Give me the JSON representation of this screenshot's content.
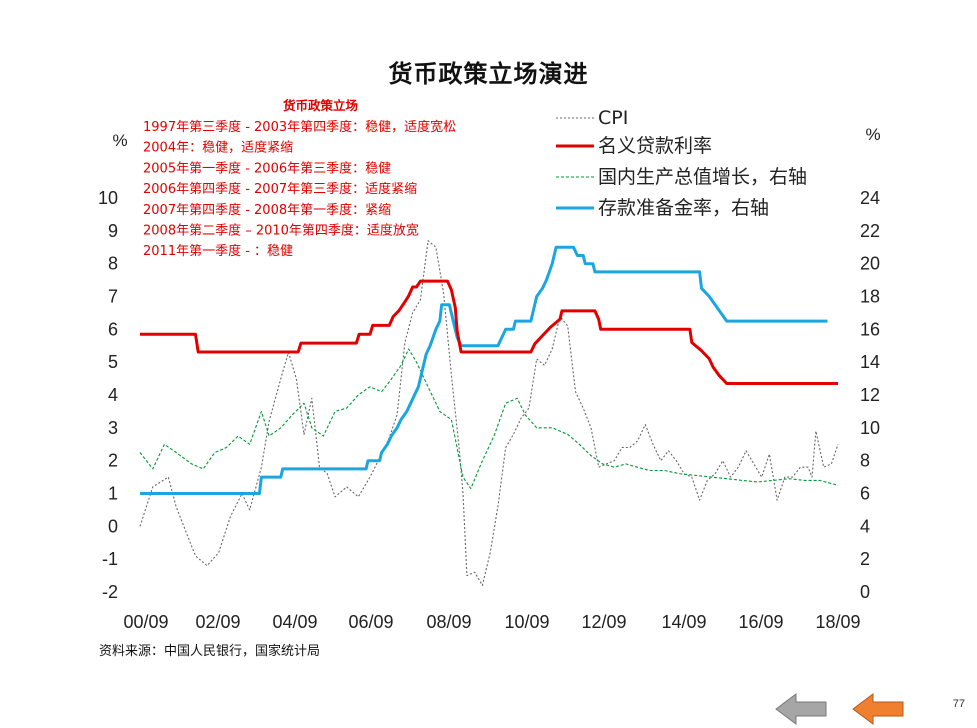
{
  "page": {
    "title": "货币政策立场演进",
    "source": "资料来源：中国人民银行，国家统计局",
    "page_number": "77"
  },
  "navigation": {
    "prev_color": "#a6a6a6",
    "next_color": "#f08030"
  },
  "chart_data": {
    "type": "line",
    "x_ticks": [
      "00/09",
      "02/09",
      "04/09",
      "06/09",
      "08/09",
      "10/09",
      "12/09",
      "14/09",
      "16/09",
      "18/09"
    ],
    "x_range": [
      2000.67,
      2018.67
    ],
    "left_axis": {
      "unit": "%",
      "range": [
        -2,
        10
      ],
      "ticks": [
        -2,
        -1,
        0,
        1,
        2,
        3,
        4,
        5,
        6,
        7,
        8,
        9,
        10
      ]
    },
    "right_axis": {
      "unit": "%",
      "range": [
        0,
        24
      ],
      "ticks": [
        0,
        2,
        4,
        6,
        8,
        10,
        12,
        14,
        16,
        18,
        20,
        22,
        24
      ]
    },
    "annotation": {
      "title": "货币政策立场",
      "lines": [
        "1997年第三季度 - 2003年第四季度：稳健，适度宽松",
        "2004年：稳健，适度紧缩",
        "2005年第一季度 - 2006年第三季度：稳健",
        "2006年第四季度 - 2007年第三季度：适度紧缩",
        "2007年第四季度 - 2008年第一季度：紧缩",
        "2008年第二季度 – 2010年第四季度：适度放宽",
        "2011年第一季度 - ：稳健"
      ]
    },
    "series": [
      {
        "name": "CPI",
        "axis": "left",
        "color": "#666666",
        "style": "dotted",
        "points": [
          [
            2000.67,
            0.0
          ],
          [
            2001.0,
            1.2
          ],
          [
            2001.4,
            1.5
          ],
          [
            2001.6,
            0.6
          ],
          [
            2001.9,
            -0.3
          ],
          [
            2002.1,
            -0.9
          ],
          [
            2002.4,
            -1.2
          ],
          [
            2002.7,
            -0.8
          ],
          [
            2003.0,
            0.3
          ],
          [
            2003.3,
            1.0
          ],
          [
            2003.5,
            0.5
          ],
          [
            2003.8,
            1.8
          ],
          [
            2004.0,
            3.2
          ],
          [
            2004.3,
            4.5
          ],
          [
            2004.5,
            5.3
          ],
          [
            2004.7,
            4.5
          ],
          [
            2004.9,
            2.8
          ],
          [
            2005.1,
            3.9
          ],
          [
            2005.3,
            1.8
          ],
          [
            2005.5,
            1.6
          ],
          [
            2005.7,
            0.9
          ],
          [
            2006.0,
            1.2
          ],
          [
            2006.3,
            0.9
          ],
          [
            2006.6,
            1.5
          ],
          [
            2006.9,
            2.2
          ],
          [
            2007.1,
            2.7
          ],
          [
            2007.3,
            3.4
          ],
          [
            2007.5,
            5.6
          ],
          [
            2007.7,
            6.5
          ],
          [
            2007.9,
            6.9
          ],
          [
            2008.1,
            8.7
          ],
          [
            2008.3,
            8.5
          ],
          [
            2008.5,
            7.1
          ],
          [
            2008.7,
            4.6
          ],
          [
            2008.9,
            2.4
          ],
          [
            2009.0,
            1.0
          ],
          [
            2009.1,
            -1.5
          ],
          [
            2009.3,
            -1.4
          ],
          [
            2009.5,
            -1.8
          ],
          [
            2009.7,
            -0.8
          ],
          [
            2009.9,
            0.6
          ],
          [
            2010.1,
            2.4
          ],
          [
            2010.3,
            2.8
          ],
          [
            2010.5,
            3.3
          ],
          [
            2010.7,
            3.6
          ],
          [
            2010.9,
            5.1
          ],
          [
            2011.1,
            4.9
          ],
          [
            2011.3,
            5.4
          ],
          [
            2011.5,
            6.4
          ],
          [
            2011.7,
            6.1
          ],
          [
            2011.9,
            4.1
          ],
          [
            2012.1,
            3.6
          ],
          [
            2012.3,
            3.0
          ],
          [
            2012.5,
            1.8
          ],
          [
            2012.7,
            1.9
          ],
          [
            2012.9,
            2.0
          ],
          [
            2013.1,
            2.4
          ],
          [
            2013.3,
            2.4
          ],
          [
            2013.5,
            2.6
          ],
          [
            2013.7,
            3.1
          ],
          [
            2013.9,
            2.5
          ],
          [
            2014.1,
            2.0
          ],
          [
            2014.3,
            2.3
          ],
          [
            2014.5,
            2.0
          ],
          [
            2014.7,
            1.6
          ],
          [
            2014.9,
            1.5
          ],
          [
            2015.1,
            0.8
          ],
          [
            2015.3,
            1.4
          ],
          [
            2015.5,
            1.6
          ],
          [
            2015.7,
            2.0
          ],
          [
            2015.9,
            1.5
          ],
          [
            2016.1,
            1.8
          ],
          [
            2016.3,
            2.3
          ],
          [
            2016.5,
            1.9
          ],
          [
            2016.7,
            1.5
          ],
          [
            2016.9,
            2.2
          ],
          [
            2017.1,
            0.8
          ],
          [
            2017.3,
            1.5
          ],
          [
            2017.5,
            1.5
          ],
          [
            2017.7,
            1.8
          ],
          [
            2017.9,
            1.8
          ],
          [
            2018.0,
            1.5
          ],
          [
            2018.1,
            2.9
          ],
          [
            2018.3,
            1.8
          ],
          [
            2018.5,
            1.9
          ],
          [
            2018.67,
            2.5
          ]
        ]
      },
      {
        "name": "名义贷款利率",
        "axis": "left",
        "color": "#e00000",
        "style": "solid",
        "points": [
          [
            2000.67,
            5.85
          ],
          [
            2002.1,
            5.85
          ],
          [
            2002.17,
            5.31
          ],
          [
            2004.75,
            5.31
          ],
          [
            2004.82,
            5.58
          ],
          [
            2006.25,
            5.58
          ],
          [
            2006.32,
            5.85
          ],
          [
            2006.6,
            5.85
          ],
          [
            2006.67,
            6.12
          ],
          [
            2007.1,
            6.12
          ],
          [
            2007.2,
            6.39
          ],
          [
            2007.35,
            6.57
          ],
          [
            2007.5,
            6.84
          ],
          [
            2007.6,
            7.02
          ],
          [
            2007.7,
            7.29
          ],
          [
            2007.8,
            7.29
          ],
          [
            2007.9,
            7.47
          ],
          [
            2008.6,
            7.47
          ],
          [
            2008.7,
            7.2
          ],
          [
            2008.8,
            6.66
          ],
          [
            2008.85,
            5.94
          ],
          [
            2008.95,
            5.31
          ],
          [
            2010.75,
            5.31
          ],
          [
            2010.85,
            5.56
          ],
          [
            2011.05,
            5.81
          ],
          [
            2011.25,
            6.06
          ],
          [
            2011.5,
            6.31
          ],
          [
            2011.55,
            6.56
          ],
          [
            2012.4,
            6.56
          ],
          [
            2012.5,
            6.31
          ],
          [
            2012.55,
            6.0
          ],
          [
            2014.85,
            6.0
          ],
          [
            2014.9,
            5.6
          ],
          [
            2015.15,
            5.35
          ],
          [
            2015.35,
            5.1
          ],
          [
            2015.45,
            4.85
          ],
          [
            2015.6,
            4.6
          ],
          [
            2015.8,
            4.35
          ],
          [
            2018.67,
            4.35
          ]
        ]
      },
      {
        "name": "国内生产总值增长，右轴",
        "axis": "right",
        "color": "#009933",
        "style": "dashed",
        "points": [
          [
            2000.67,
            8.5
          ],
          [
            2001.0,
            7.5
          ],
          [
            2001.3,
            9.0
          ],
          [
            2001.6,
            8.5
          ],
          [
            2002.0,
            7.8
          ],
          [
            2002.3,
            7.5
          ],
          [
            2002.6,
            8.5
          ],
          [
            2002.9,
            8.8
          ],
          [
            2003.2,
            9.5
          ],
          [
            2003.5,
            9.0
          ],
          [
            2003.8,
            11.0
          ],
          [
            2004.0,
            9.5
          ],
          [
            2004.3,
            10.0
          ],
          [
            2004.6,
            10.8
          ],
          [
            2004.9,
            11.5
          ],
          [
            2005.1,
            10.0
          ],
          [
            2005.4,
            9.5
          ],
          [
            2005.7,
            11.0
          ],
          [
            2006.0,
            11.2
          ],
          [
            2006.3,
            12.0
          ],
          [
            2006.6,
            12.5
          ],
          [
            2006.9,
            12.2
          ],
          [
            2007.1,
            12.8
          ],
          [
            2007.4,
            13.8
          ],
          [
            2007.6,
            14.8
          ],
          [
            2007.8,
            14.0
          ],
          [
            2008.1,
            12.5
          ],
          [
            2008.4,
            11.0
          ],
          [
            2008.7,
            10.5
          ],
          [
            2009.0,
            7.0
          ],
          [
            2009.2,
            6.3
          ],
          [
            2009.5,
            8.0
          ],
          [
            2009.8,
            9.5
          ],
          [
            2010.1,
            11.5
          ],
          [
            2010.4,
            11.8
          ],
          [
            2010.6,
            10.8
          ],
          [
            2010.9,
            10.0
          ],
          [
            2011.3,
            10.0
          ],
          [
            2011.7,
            9.6
          ],
          [
            2012.0,
            9.0
          ],
          [
            2012.3,
            8.3
          ],
          [
            2012.6,
            7.8
          ],
          [
            2012.9,
            7.6
          ],
          [
            2013.2,
            7.8
          ],
          [
            2013.5,
            7.6
          ],
          [
            2013.8,
            7.4
          ],
          [
            2014.2,
            7.4
          ],
          [
            2014.6,
            7.2
          ],
          [
            2015.0,
            7.1
          ],
          [
            2015.4,
            7.0
          ],
          [
            2015.8,
            6.9
          ],
          [
            2016.2,
            6.8
          ],
          [
            2016.6,
            6.7
          ],
          [
            2017.0,
            6.8
          ],
          [
            2017.4,
            6.9
          ],
          [
            2017.8,
            6.8
          ],
          [
            2018.2,
            6.8
          ],
          [
            2018.67,
            6.5
          ]
        ]
      },
      {
        "name": "存款准备金率，右轴",
        "axis": "right",
        "color": "#1aa6e0",
        "style": "solid",
        "points": [
          [
            2000.67,
            6.0
          ],
          [
            2003.75,
            6.0
          ],
          [
            2003.8,
            7.0
          ],
          [
            2004.3,
            7.0
          ],
          [
            2004.35,
            7.5
          ],
          [
            2006.5,
            7.5
          ],
          [
            2006.55,
            8.0
          ],
          [
            2006.85,
            8.0
          ],
          [
            2006.9,
            8.5
          ],
          [
            2007.05,
            9.0
          ],
          [
            2007.15,
            9.5
          ],
          [
            2007.3,
            10.0
          ],
          [
            2007.4,
            10.5
          ],
          [
            2007.55,
            11.0
          ],
          [
            2007.65,
            11.5
          ],
          [
            2007.75,
            12.0
          ],
          [
            2007.85,
            12.5
          ],
          [
            2007.95,
            13.5
          ],
          [
            2008.05,
            14.5
          ],
          [
            2008.15,
            15.0
          ],
          [
            2008.3,
            16.0
          ],
          [
            2008.4,
            16.5
          ],
          [
            2008.45,
            17.5
          ],
          [
            2008.65,
            17.5
          ],
          [
            2008.75,
            16.5
          ],
          [
            2008.85,
            15.5
          ],
          [
            2008.95,
            15.0
          ],
          [
            2009.9,
            15.0
          ],
          [
            2010.0,
            15.5
          ],
          [
            2010.1,
            16.0
          ],
          [
            2010.3,
            16.0
          ],
          [
            2010.35,
            16.5
          ],
          [
            2010.75,
            16.5
          ],
          [
            2010.8,
            17.0
          ],
          [
            2010.9,
            18.0
          ],
          [
            2011.05,
            18.5
          ],
          [
            2011.15,
            19.0
          ],
          [
            2011.3,
            20.0
          ],
          [
            2011.4,
            21.0
          ],
          [
            2011.85,
            21.0
          ],
          [
            2011.95,
            20.5
          ],
          [
            2012.1,
            20.5
          ],
          [
            2012.15,
            20.0
          ],
          [
            2012.35,
            20.0
          ],
          [
            2012.4,
            19.5
          ],
          [
            2015.1,
            19.5
          ],
          [
            2015.15,
            18.5
          ],
          [
            2015.35,
            18.0
          ],
          [
            2015.5,
            17.5
          ],
          [
            2015.65,
            17.0
          ],
          [
            2015.8,
            16.5
          ],
          [
            2016.1,
            16.5
          ],
          [
            2016.15,
            16.5
          ],
          [
            2018.4,
            16.5
          ]
        ]
      }
    ]
  }
}
